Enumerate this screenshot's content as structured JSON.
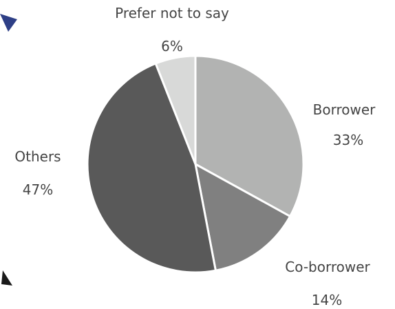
{
  "chart_data": {
    "type": "pie",
    "slices": [
      {
        "label": "Borrower",
        "value": 33,
        "value_label": "33%",
        "color": "#b2b3b2"
      },
      {
        "label": "Co-borrower",
        "value": 14,
        "value_label": "14%",
        "color": "#808080"
      },
      {
        "label": "Others",
        "value": 47,
        "value_label": "47%",
        "color": "#595959"
      },
      {
        "label": "Prefer not to say",
        "value": 6,
        "value_label": "6%",
        "color": "#d8d9d8"
      }
    ],
    "start_angle": "12 o'clock",
    "direction": "clockwise",
    "legend": "none"
  },
  "colors": {
    "label_text": "#444444",
    "slice_border": "#ffffff",
    "decoration_blue": "#2e3f86",
    "decoration_dark": "#1a1a1a"
  },
  "decorations": {
    "top_left": "triangle-arrow-icon",
    "bottom_left": "triangle-arrow-icon"
  }
}
